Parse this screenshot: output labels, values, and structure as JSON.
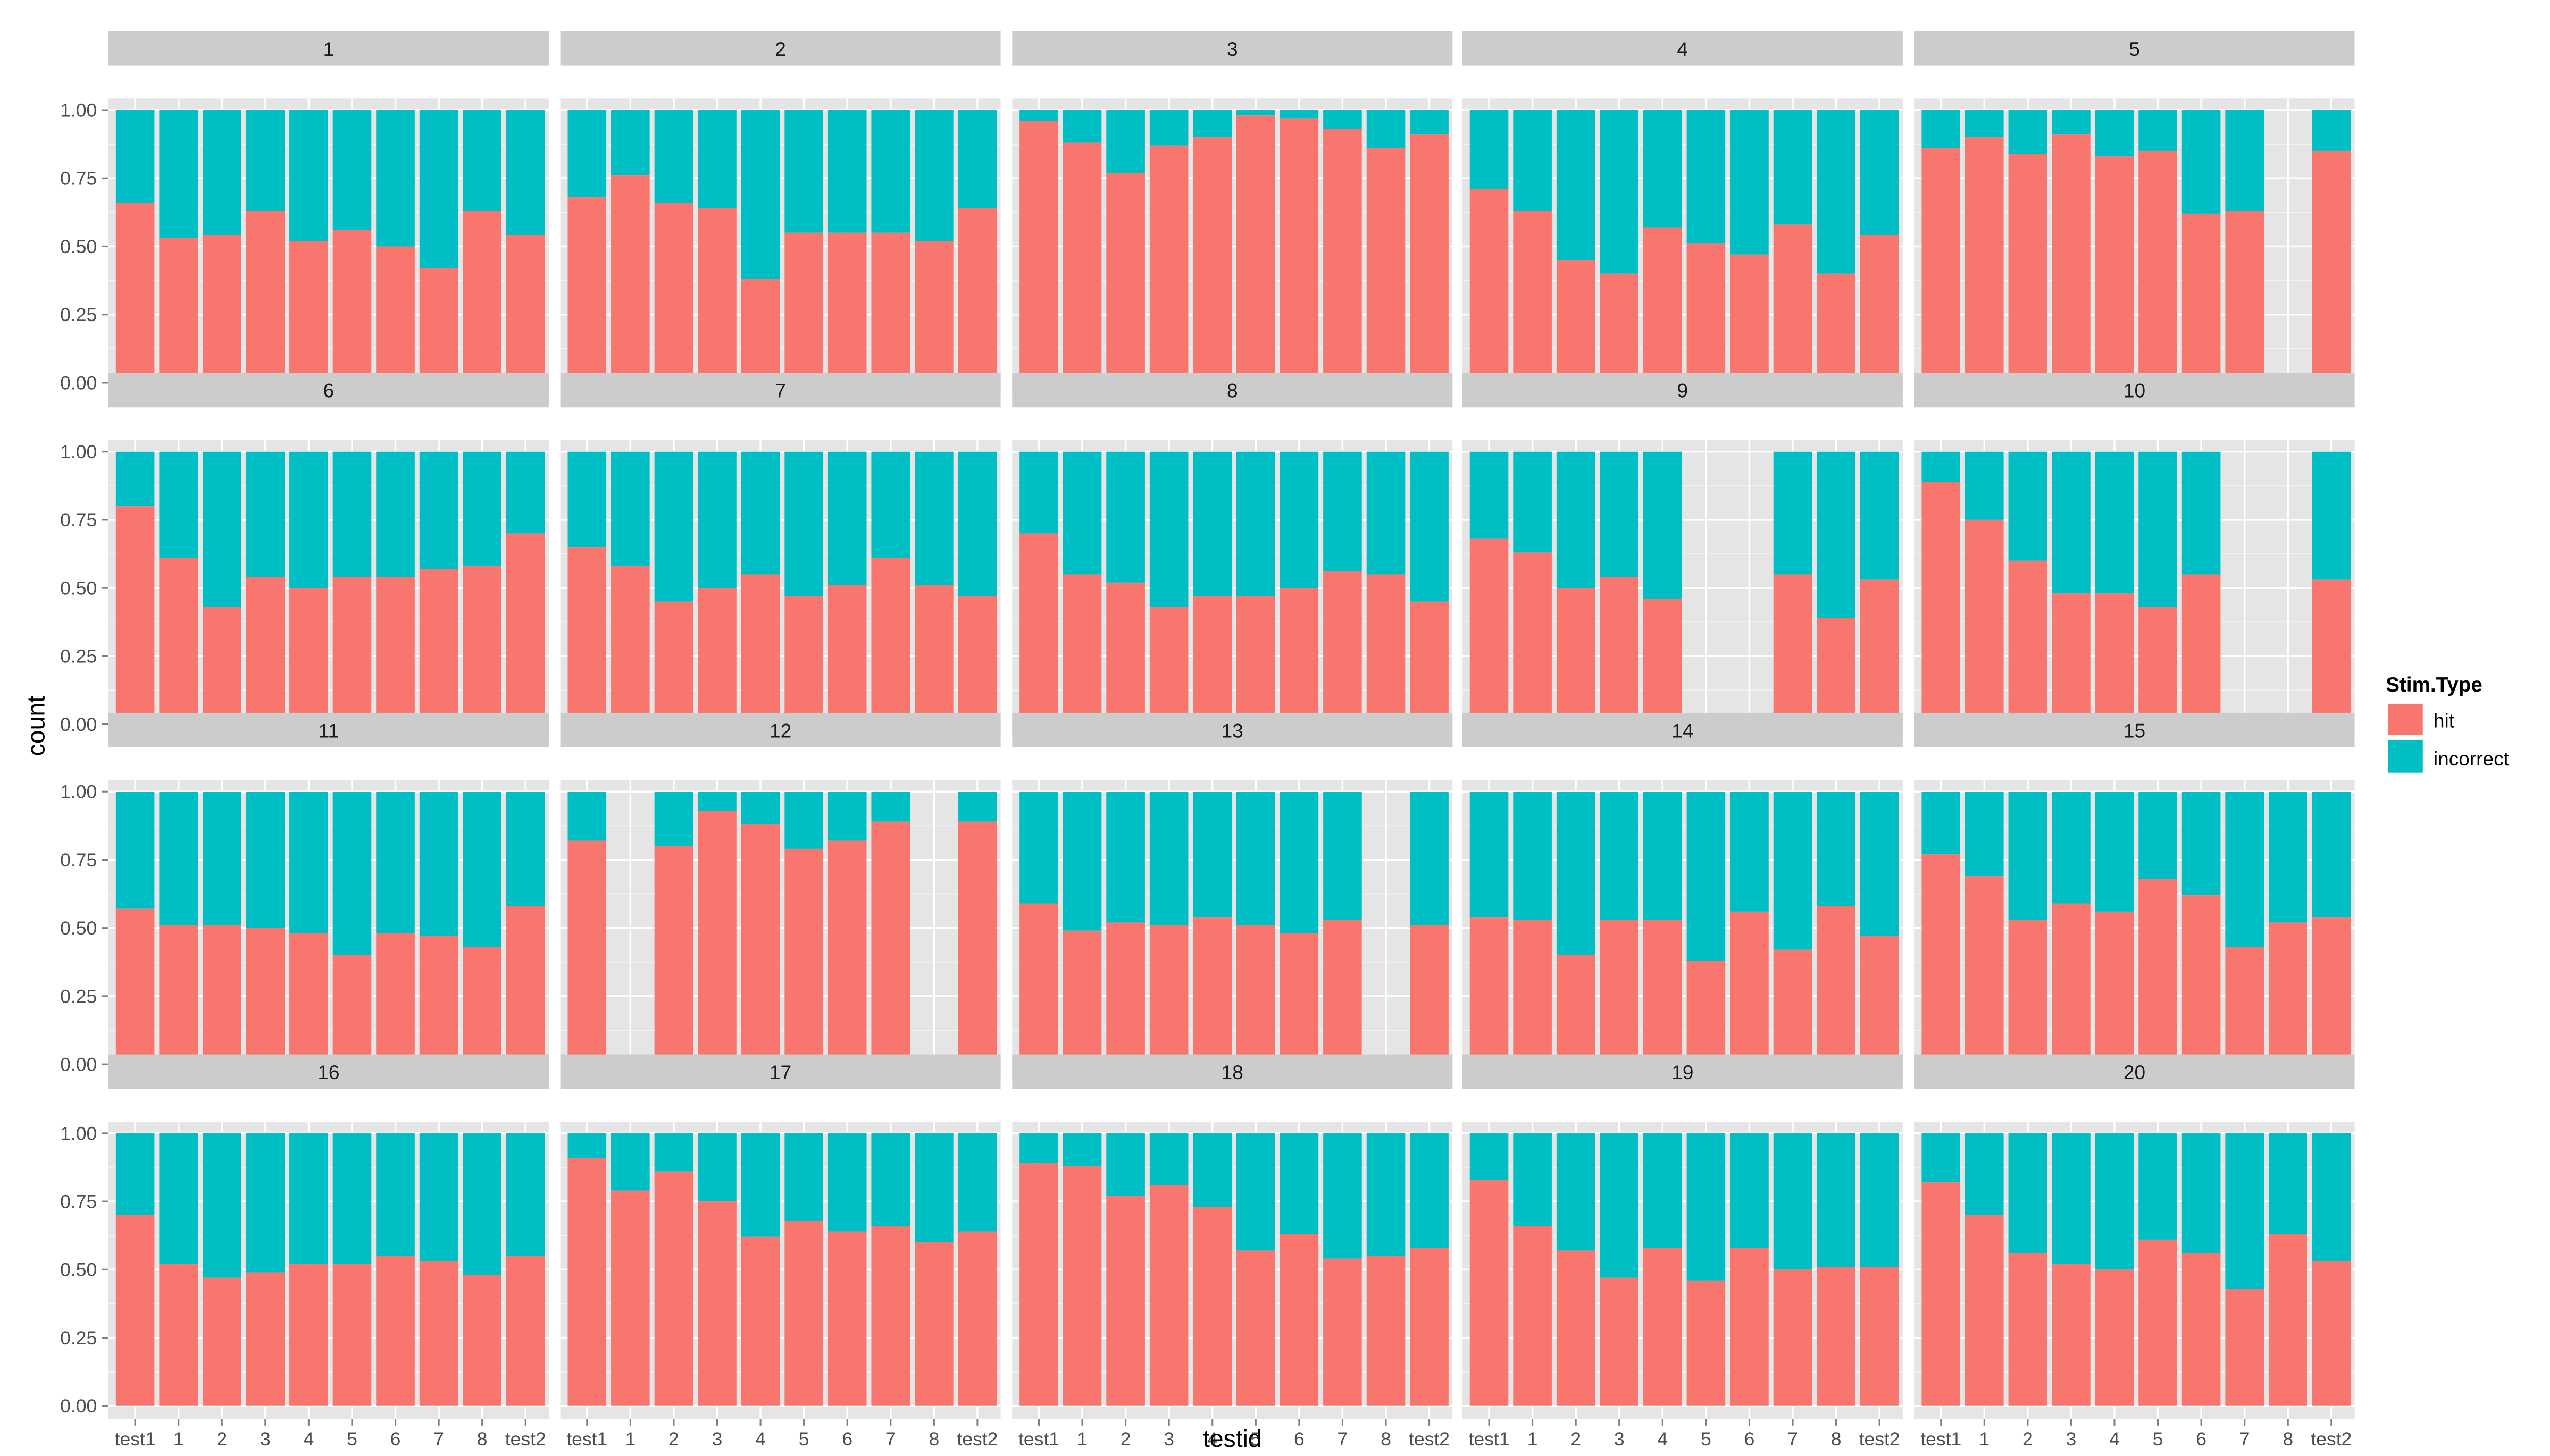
{
  "chart_data": {
    "type": "bar",
    "stacked": true,
    "position": "fill",
    "xlabel": "testid",
    "ylabel": "count",
    "yticks": [
      "0.00",
      "0.25",
      "0.50",
      "0.75",
      "1.00"
    ],
    "ylim": [
      0,
      1
    ],
    "categories": [
      "test1",
      "1",
      "2",
      "3",
      "4",
      "5",
      "6",
      "7",
      "8",
      "test2"
    ],
    "legend": {
      "title": "Stim.Type",
      "position": "right",
      "entries": [
        {
          "label": "hit",
          "color": "#F8766D"
        },
        {
          "label": "incorrect",
          "color": "#00BFC4"
        }
      ]
    },
    "note": "Each panel: hit proportion per testid category; incorrect = 1 - hit; null = no bar",
    "panels": [
      {
        "label": "1",
        "hit": [
          0.66,
          0.53,
          0.54,
          0.63,
          0.52,
          0.56,
          0.5,
          0.42,
          0.63,
          0.54
        ]
      },
      {
        "label": "2",
        "hit": [
          0.68,
          0.76,
          0.66,
          0.64,
          0.38,
          0.55,
          0.55,
          0.55,
          0.52,
          0.64
        ]
      },
      {
        "label": "3",
        "hit": [
          0.96,
          0.88,
          0.77,
          0.87,
          0.9,
          0.98,
          0.97,
          0.93,
          0.86,
          0.91
        ]
      },
      {
        "label": "4",
        "hit": [
          0.71,
          0.63,
          0.45,
          0.4,
          0.57,
          0.51,
          0.47,
          0.58,
          0.4,
          0.54
        ]
      },
      {
        "label": "5",
        "hit": [
          0.86,
          0.9,
          0.84,
          0.91,
          0.83,
          0.85,
          0.62,
          0.63,
          null,
          0.85
        ]
      },
      {
        "label": "6",
        "hit": [
          0.8,
          0.61,
          0.43,
          0.54,
          0.5,
          0.54,
          0.54,
          0.57,
          0.58,
          0.7
        ]
      },
      {
        "label": "7",
        "hit": [
          0.65,
          0.58,
          0.45,
          0.5,
          0.55,
          0.47,
          0.51,
          0.61,
          0.51,
          0.47
        ]
      },
      {
        "label": "8",
        "hit": [
          0.7,
          0.55,
          0.52,
          0.43,
          0.47,
          0.47,
          0.5,
          0.56,
          0.55,
          0.45
        ]
      },
      {
        "label": "9",
        "hit": [
          0.68,
          0.63,
          0.5,
          0.54,
          0.46,
          null,
          null,
          0.55,
          0.39,
          0.53
        ]
      },
      {
        "label": "10",
        "hit": [
          0.89,
          0.75,
          0.6,
          0.48,
          0.48,
          0.43,
          0.55,
          null,
          null,
          0.53
        ]
      },
      {
        "label": "11",
        "hit": [
          0.57,
          0.51,
          0.51,
          0.5,
          0.48,
          0.4,
          0.48,
          0.47,
          0.43,
          0.58
        ]
      },
      {
        "label": "12",
        "hit": [
          0.82,
          null,
          0.8,
          0.93,
          0.88,
          0.79,
          0.82,
          0.89,
          null,
          0.89
        ]
      },
      {
        "label": "13",
        "hit": [
          0.59,
          0.49,
          0.52,
          0.51,
          0.54,
          0.51,
          0.48,
          0.53,
          null,
          0.51
        ]
      },
      {
        "label": "14",
        "hit": [
          0.54,
          0.53,
          0.4,
          0.53,
          0.53,
          0.38,
          0.56,
          0.42,
          0.58,
          0.47
        ]
      },
      {
        "label": "15",
        "hit": [
          0.77,
          0.69,
          0.53,
          0.59,
          0.56,
          0.68,
          0.62,
          0.43,
          0.52,
          0.54
        ]
      },
      {
        "label": "16",
        "hit": [
          0.7,
          0.52,
          0.47,
          0.49,
          0.52,
          0.52,
          0.55,
          0.53,
          0.48,
          0.55
        ]
      },
      {
        "label": "17",
        "hit": [
          0.91,
          0.79,
          0.86,
          0.75,
          0.62,
          0.68,
          0.64,
          0.66,
          0.6,
          0.64
        ]
      },
      {
        "label": "18",
        "hit": [
          0.89,
          0.88,
          0.77,
          0.81,
          0.73,
          0.57,
          0.63,
          0.54,
          0.55,
          0.58
        ]
      },
      {
        "label": "19",
        "hit": [
          0.83,
          0.66,
          0.57,
          0.47,
          0.58,
          0.46,
          0.58,
          0.5,
          0.51,
          0.51
        ]
      },
      {
        "label": "20",
        "hit": [
          0.82,
          0.7,
          0.56,
          0.52,
          0.5,
          0.61,
          0.56,
          0.43,
          0.63,
          0.53
        ]
      }
    ]
  },
  "colors": {
    "hit": "#F8766D",
    "incorrect": "#00BFC4",
    "panel_bg": "#E5E5E5",
    "grid": "#FFFFFF",
    "strip_bg": "#CCCCCC",
    "text": "#4D4D4D"
  }
}
